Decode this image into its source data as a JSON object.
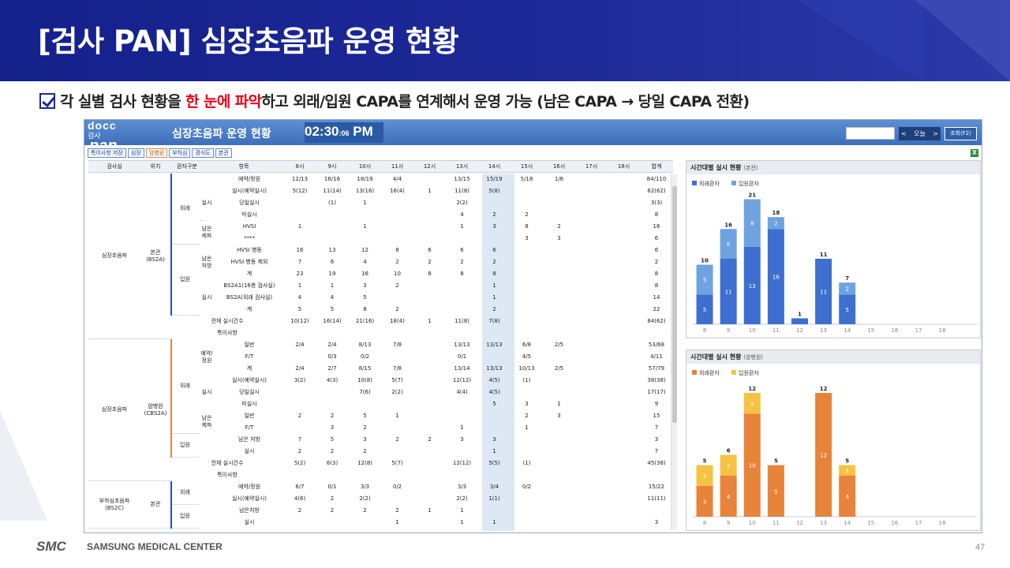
{
  "slide": {
    "title": "[검사 PAN] 심장초음파 운영 현황",
    "sub_a": "각 실별 검사 현황을 ",
    "sub_red": "한 눈에 파악",
    "sub_b": "하고 외래/입원 CAPA를 연계해서 운영 가능 (남은 CAPA → 당일 CAPA 전환)",
    "footer_logo": "SMC",
    "footer_name": "SAMSUNG MEDICAL CENTER",
    "page_number": "47"
  },
  "app": {
    "logo_top": "docc",
    "logo_mid": "검사",
    "logo_bottom": "pan",
    "title": "심장초음파 운영 현황",
    "clock_main": "02:30",
    "clock_sec": ":06",
    "clock_ampm": "PM",
    "nav_prev": "<",
    "nav_today": "오늘",
    "nav_next": ">",
    "search_button": "조회(F2)",
    "toolbar": [
      "특이사항 저장",
      "심장",
      "암병원",
      "부하심",
      "경식도",
      "본관"
    ],
    "excel_icon": "X"
  },
  "table": {
    "headers": [
      "검사실",
      "위치",
      "환자구분",
      "항목",
      "8시",
      "9시",
      "10시",
      "11시",
      "12시",
      "13시",
      "14시",
      "15시",
      "16시",
      "17시",
      "18시",
      "합계"
    ],
    "rows": [
      [
        "예약/정원",
        "12/13",
        "16/16",
        "18/19",
        "4/4",
        "",
        "13/15",
        "15/19",
        "5/18",
        "1/6",
        "",
        "",
        "84/110"
      ],
      [
        "실시(예약실시)",
        "5(12)",
        "11(14)",
        "13(16)",
        "16(4)",
        "1",
        "11(8)",
        "5(8)",
        "",
        "",
        "",
        "",
        "62(62)"
      ],
      [
        "당일실시",
        "",
        "(1)",
        "1",
        "",
        "",
        "2(2)",
        "",
        "",
        "",
        "",
        "",
        "3(3)"
      ],
      [
        "미실시",
        "",
        "",
        "",
        "",
        "",
        "4",
        "2",
        "2",
        "",
        "",
        "",
        "8"
      ],
      [
        "HVSI",
        "1",
        "",
        "1",
        "",
        "",
        "1",
        "3",
        "8",
        "2",
        "",
        "",
        "16"
      ],
      [
        "****",
        "",
        "",
        "",
        "",
        "",
        "",
        "",
        "3",
        "3",
        "",
        "",
        "6"
      ],
      [
        "HVSI 병동",
        "16",
        "13",
        "12",
        "8",
        "6",
        "6",
        "6",
        "",
        "",
        "",
        "",
        "6"
      ],
      [
        "HVSI 병동 제외",
        "7",
        "6",
        "4",
        "2",
        "2",
        "2",
        "2",
        "",
        "",
        "",
        "",
        "2"
      ],
      [
        "계",
        "23",
        "19",
        "16",
        "10",
        "8",
        "8",
        "8",
        "",
        "",
        "",
        "",
        "8"
      ],
      [
        "BS2A1(16층 검사실)",
        "1",
        "1",
        "3",
        "2",
        "",
        "",
        "1",
        "",
        "",
        "",
        "",
        "8"
      ],
      [
        "BS2A(외래 검사실)",
        "4",
        "4",
        "5",
        "",
        "",
        "",
        "1",
        "",
        "",
        "",
        "",
        "14"
      ],
      [
        "계",
        "5",
        "5",
        "8",
        "2",
        "",
        "",
        "2",
        "",
        "",
        "",
        "",
        "22"
      ],
      [
        "전체 실시건수",
        "10(12)",
        "16(14)",
        "21(16)",
        "18(4)",
        "1",
        "11(8)",
        "7(8)",
        "",
        "",
        "",
        "",
        "84(62)"
      ],
      [
        "특이사항",
        "",
        "",
        "",
        "",
        "",
        "",
        "",
        "",
        "",
        "",
        "",
        ""
      ],
      [
        "일반",
        "2/4",
        "2/4",
        "8/13",
        "7/8",
        "",
        "13/13",
        "13/13",
        "6/8",
        "2/5",
        "",
        "",
        "53/68"
      ],
      [
        "F/T",
        "",
        "0/3",
        "0/2",
        "",
        "",
        "0/1",
        "",
        "4/5",
        "",
        "",
        "",
        "4/11"
      ],
      [
        "계",
        "2/4",
        "2/7",
        "8/15",
        "7/8",
        "",
        "13/14",
        "13/13",
        "10/13",
        "2/5",
        "",
        "",
        "57/79"
      ],
      [
        "실시(예약실시)",
        "3(2)",
        "4(3)",
        "10(8)",
        "5(7)",
        "",
        "12(12)",
        "4(5)",
        "(1)",
        "",
        "",
        "",
        "38(38)"
      ],
      [
        "당일실시",
        "",
        "",
        "7(6)",
        "2(2)",
        "",
        "4(4)",
        "4(5)",
        "",
        "",
        "",
        "",
        "17(17)"
      ],
      [
        "미실시",
        "",
        "",
        "",
        "",
        "",
        "",
        "5",
        "3",
        "1",
        "",
        "",
        "9"
      ],
      [
        "일반",
        "2",
        "2",
        "5",
        "1",
        "",
        "",
        "",
        "2",
        "3",
        "",
        "",
        "15"
      ],
      [
        "F/T",
        "",
        "3",
        "2",
        "",
        "",
        "1",
        "",
        "1",
        "",
        "",
        "",
        "7"
      ],
      [
        "남은 처방",
        "7",
        "5",
        "3",
        "2",
        "2",
        "3",
        "3",
        "",
        "",
        "",
        "",
        "3"
      ],
      [
        "실시",
        "2",
        "2",
        "2",
        "",
        "",
        "",
        "1",
        "",
        "",
        "",
        "",
        "7"
      ],
      [
        "전체 실시건수",
        "5(2)",
        "6(3)",
        "12(8)",
        "5(7)",
        "",
        "12(12)",
        "5(5)",
        "(1)",
        "",
        "",
        "",
        "45(38)"
      ],
      [
        "특이사항",
        "",
        "",
        "",
        "",
        "",
        "",
        "",
        "",
        "",
        "",
        "",
        ""
      ],
      [
        "예약/정원",
        "6/7",
        "0/1",
        "3/3",
        "0/2",
        "",
        "3/3",
        "3/4",
        "0/2",
        "",
        "",
        "",
        "15/22"
      ],
      [
        "실시(예약실시)",
        "4(6)",
        "2",
        "2(2)",
        "",
        "",
        "2(2)",
        "1(1)",
        "",
        "",
        "",
        "",
        "11(11)"
      ],
      [
        "남은처방",
        "2",
        "2",
        "2",
        "2",
        "1",
        "1",
        "",
        "",
        "",
        "",
        "",
        ""
      ],
      [
        "실시",
        "",
        "",
        "",
        "1",
        "",
        "1",
        "1",
        "",
        "",
        "",
        "",
        "3"
      ]
    ],
    "labels": {
      "room1": "심장초음파",
      "loc1": "본관\n(BS2A)",
      "room2": "심장초음파",
      "loc2": "암병원\n(CBS2A)",
      "room3": "부하심초음파\n(BS2C)",
      "loc3": "본관",
      "out": "외래",
      "in": "입원",
      "do": "실시",
      "remain_kepa": "남은\n케파",
      "remain_presc": "남은\n처방",
      "res_cap": "예약/\n정원"
    }
  },
  "charts": [
    {
      "title": "시간대별 실시 현황",
      "title_sub": "(본관)",
      "legend": [
        "외래환자",
        "입원환자"
      ],
      "colors": [
        "#3d6fd1",
        "#6ea3e0"
      ]
    },
    {
      "title": "시간대별 실시 현황",
      "title_sub": "(암병원)",
      "legend": [
        "외래환자",
        "입원환자"
      ],
      "colors": [
        "#e8833a",
        "#f5c242"
      ]
    }
  ],
  "chart_data": [
    {
      "type": "bar",
      "stacked": true,
      "categories": [
        "8",
        "9",
        "10",
        "11",
        "12",
        "13",
        "14",
        "15",
        "16",
        "17",
        "18"
      ],
      "series": [
        {
          "name": "외래환자",
          "values": [
            5,
            11,
            13,
            16,
            1,
            11,
            5,
            0,
            0,
            0,
            0
          ]
        },
        {
          "name": "입원환자",
          "values": [
            5,
            5,
            8,
            2,
            0,
            0,
            2,
            0,
            0,
            0,
            0
          ]
        }
      ],
      "totals": [
        10,
        16,
        21,
        18,
        1,
        11,
        7,
        null,
        null,
        null,
        null
      ],
      "ylim": [
        0,
        22
      ]
    },
    {
      "type": "bar",
      "stacked": true,
      "categories": [
        "8",
        "9",
        "10",
        "11",
        "12",
        "13",
        "14",
        "15",
        "16",
        "17",
        "18"
      ],
      "series": [
        {
          "name": "외래환자",
          "values": [
            3,
            4,
            10,
            5,
            0,
            12,
            4,
            0,
            0,
            0,
            0
          ]
        },
        {
          "name": "입원환자",
          "values": [
            2,
            2,
            2,
            0,
            0,
            0,
            1,
            0,
            0,
            0,
            0
          ]
        }
      ],
      "totals": [
        5,
        6,
        12,
        5,
        null,
        12,
        5,
        null,
        null,
        null,
        null
      ],
      "ylim": [
        0,
        13
      ]
    }
  ]
}
